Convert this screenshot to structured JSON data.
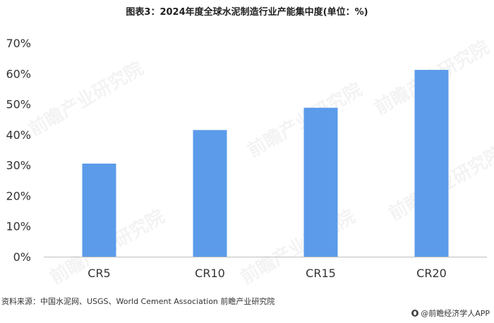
{
  "title": "图表3：2024年度全球水泥制造行业产能集中度(单位：%)",
  "source": "资料来源：中国水泥网、USGS、World Cement Association 前瞻产业研究院",
  "brand": "@前瞻经济学人APP",
  "watermark": "前瞻产业研究院",
  "colors": {
    "bar": "#5b9bea",
    "axis": "#bfbfbf"
  },
  "chart_data": {
    "type": "bar",
    "categories": [
      "CR5",
      "CR10",
      "CR15",
      "CR20"
    ],
    "values": [
      30.5,
      41.5,
      48.8,
      61.2
    ],
    "ylim": [
      0,
      70
    ],
    "yticks": [
      "0%",
      "10%",
      "20%",
      "30%",
      "40%",
      "50%",
      "60%",
      "70%"
    ],
    "grid": false,
    "xlabel": "",
    "ylabel": ""
  }
}
